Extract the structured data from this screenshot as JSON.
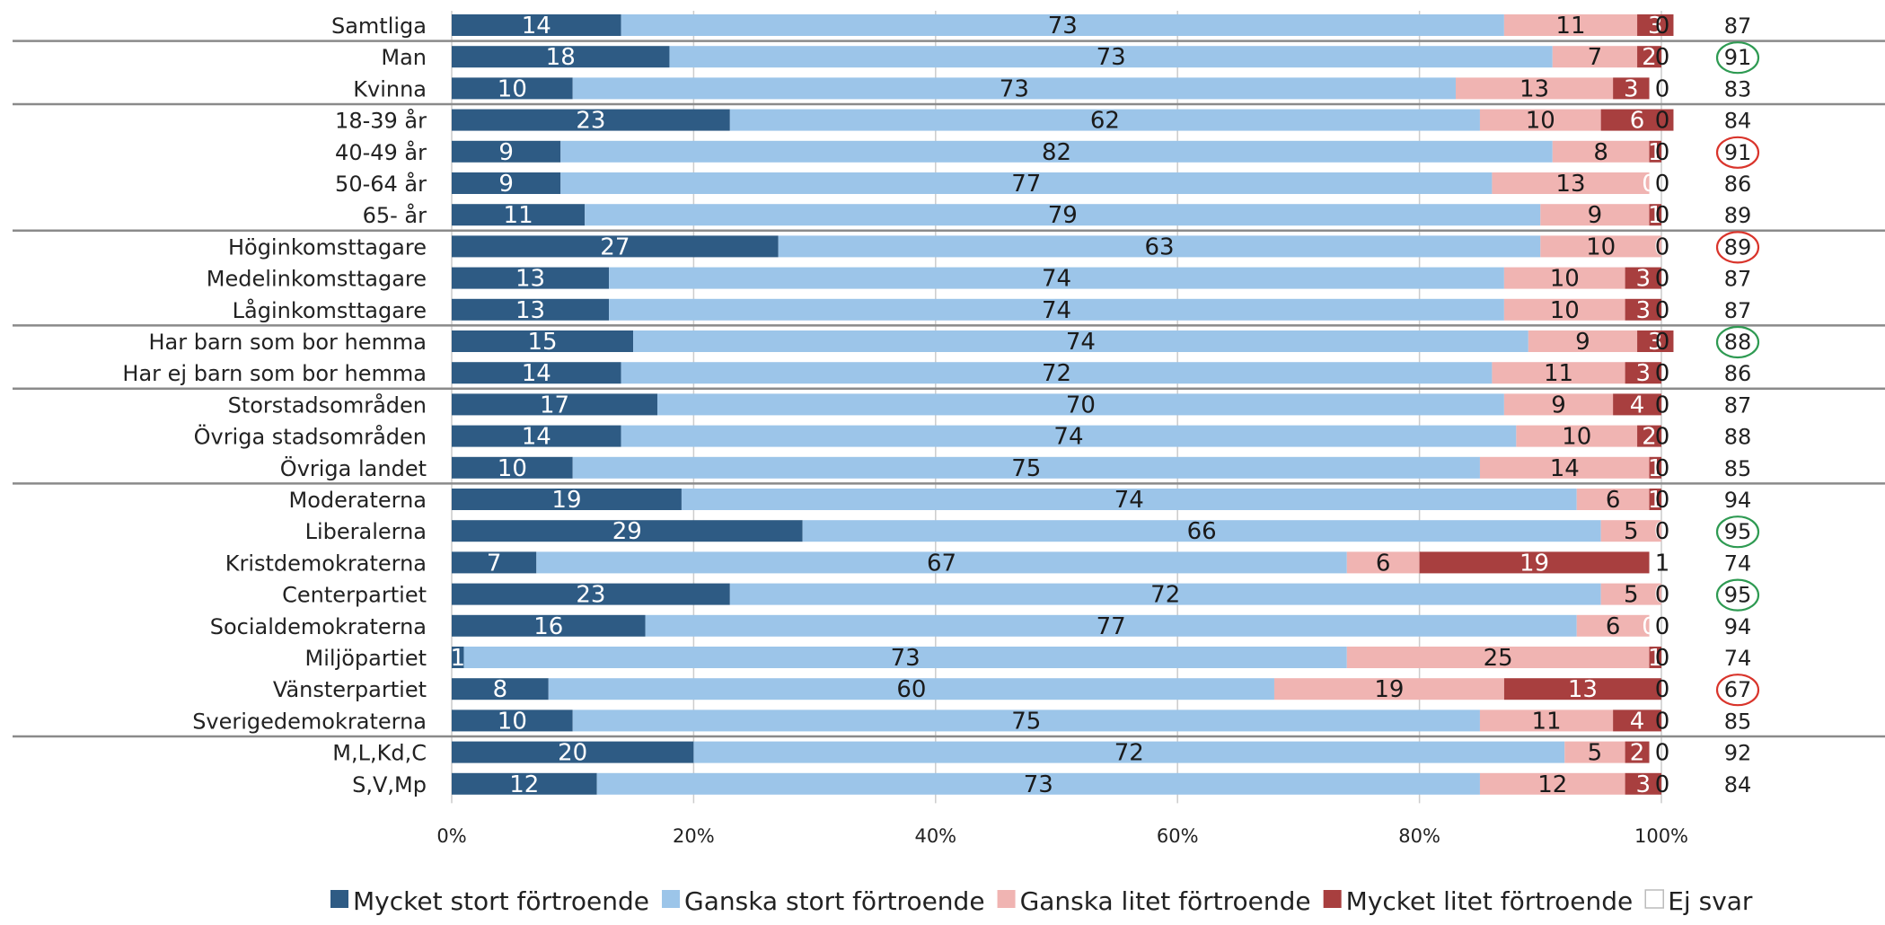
{
  "chart_data": {
    "type": "bar",
    "orientation": "horizontal",
    "stacked": "percent",
    "xlim": [
      0,
      100
    ],
    "x_ticks": [
      "0%",
      "20%",
      "40%",
      "60%",
      "80%",
      "100%"
    ],
    "grid": true,
    "legend_position": "bottom",
    "categories": [
      "Samtliga",
      "Man",
      "Kvinna",
      "18-39 år",
      "40-49 år",
      "50-64 år",
      "65-  år",
      "Höginkomsttagare",
      "Medelinkomsttagare",
      "Låginkomsttagare",
      "Har barn som bor hemma",
      "Har ej barn som bor hemma",
      "Storstadsområden",
      "Övriga stadsområden",
      "Övriga landet",
      "Moderaterna",
      "Liberalerna",
      "Kristdemokraterna",
      "Centerpartiet",
      "Socialdemokraterna",
      "Miljöpartiet",
      "Vänsterpartiet",
      "Sverigedemokraterna",
      "M,L,Kd,C",
      "S,V,Mp"
    ],
    "series": [
      {
        "name": "Mycket stort förtroende",
        "color": "#2e5b84",
        "values": [
          14,
          18,
          10,
          23,
          9,
          9,
          11,
          27,
          13,
          13,
          15,
          14,
          17,
          14,
          10,
          19,
          29,
          7,
          23,
          16,
          1,
          8,
          10,
          20,
          12
        ]
      },
      {
        "name": "Ganska stort förtroende",
        "color": "#9cc5e9",
        "values": [
          73,
          73,
          73,
          62,
          82,
          77,
          79,
          63,
          74,
          74,
          74,
          72,
          70,
          74,
          75,
          74,
          66,
          67,
          72,
          77,
          73,
          60,
          75,
          72,
          73
        ]
      },
      {
        "name": "Ganska litet förtroende",
        "color": "#f0b4b2",
        "values": [
          11,
          7,
          13,
          10,
          8,
          13,
          9,
          10,
          10,
          10,
          9,
          11,
          9,
          10,
          14,
          6,
          5,
          6,
          5,
          6,
          25,
          19,
          11,
          5,
          12
        ]
      },
      {
        "name": "Mycket litet förtroende",
        "color": "#a83f3f",
        "values": [
          3,
          2,
          3,
          6,
          1,
          0,
          1,
          0,
          3,
          3,
          3,
          3,
          4,
          2,
          1,
          1,
          0,
          19,
          0,
          0,
          1,
          13,
          4,
          2,
          3
        ]
      },
      {
        "name": "Ej svar",
        "color": "#ffffff",
        "values": [
          0,
          0,
          0,
          0,
          0,
          0,
          0,
          0,
          0,
          0,
          0,
          0,
          0,
          0,
          0,
          0,
          0,
          1,
          0,
          0,
          0,
          0,
          0,
          0,
          0
        ]
      }
    ],
    "totals": [
      87,
      91,
      83,
      84,
      91,
      86,
      89,
      89,
      87,
      87,
      88,
      86,
      87,
      88,
      85,
      94,
      95,
      74,
      95,
      94,
      74,
      67,
      85,
      92,
      84
    ],
    "total_circles": [
      {
        "row": 1,
        "color": "#2e9a52"
      },
      {
        "row": 4,
        "color": "#d9342b"
      },
      {
        "row": 7,
        "color": "#d9342b"
      },
      {
        "row": 10,
        "color": "#2e9a52"
      },
      {
        "row": 16,
        "color": "#2e9a52"
      },
      {
        "row": 18,
        "color": "#2e9a52"
      },
      {
        "row": 21,
        "color": "#d9342b"
      }
    ],
    "group_separators_after_rows": [
      0,
      2,
      6,
      9,
      11,
      14,
      22
    ]
  }
}
